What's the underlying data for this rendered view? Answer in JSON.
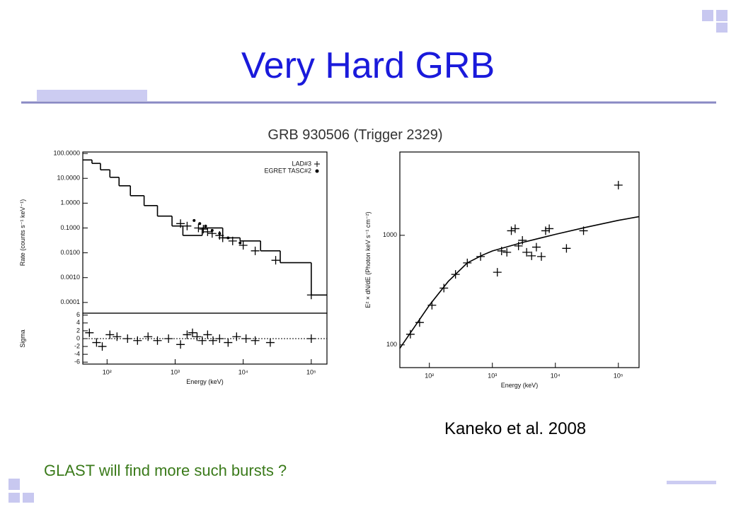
{
  "title": "Very Hard GRB",
  "figure_title": "GRB 930506 (Trigger 2329)",
  "citation": "Kaneko et al. 2008",
  "footer": "GLAST will find more such bursts ?",
  "chart_data": [
    {
      "type": "line",
      "ylabel": "Rate (counts s⁻¹ keV⁻¹)",
      "log_x": true,
      "log_y": true,
      "xlim": [
        44,
        170000
      ],
      "ylim": [
        3.7e-05,
        115
      ],
      "yticks": [
        {
          "value": 100,
          "label": "100.0000"
        },
        {
          "value": 10,
          "label": "10.0000"
        },
        {
          "value": 1,
          "label": "1.0000"
        },
        {
          "value": 0.1,
          "label": "0.1000"
        },
        {
          "value": 0.01,
          "label": "0.0100"
        },
        {
          "value": 0.001,
          "label": "0.0010"
        },
        {
          "value": 0.0001,
          "label": "0.0001"
        }
      ],
      "legend": "upper right",
      "series": [
        {
          "color": "#000000",
          "step": true,
          "x": [
            44,
            60,
            80,
            110,
            150,
            220,
            350,
            550,
            900,
            1300,
            2500,
            5000,
            9000,
            18000,
            35000,
            100000
          ],
          "values": [
            55,
            40,
            22,
            11,
            5,
            2,
            0.8,
            0.3,
            0.12,
            0.05,
            0.1,
            0.04,
            0.03,
            0.012,
            0.004,
            0.0002
          ]
        },
        {
          "name": "LAD#3",
          "color": "#000000",
          "marker": "plus",
          "x": [
            1200,
            1500,
            2200,
            2600,
            3000,
            3500,
            4500,
            5000,
            7000,
            10000,
            15000,
            30000,
            100000
          ],
          "values": [
            0.15,
            0.12,
            0.1,
            0.09,
            0.07,
            0.06,
            0.05,
            0.04,
            0.03,
            0.02,
            0.012,
            0.005,
            0.0002
          ]
        },
        {
          "name": "EGRET TASC#2",
          "color": "#000000",
          "marker": "dot",
          "x": [
            1900,
            2300,
            2800,
            3500,
            4500,
            6000,
            9000
          ],
          "values": [
            0.2,
            0.15,
            0.12,
            0.08,
            0.06,
            0.04,
            0.025
          ]
        }
      ]
    },
    {
      "type": "scatter",
      "ylabel": "Sigma",
      "xlabel": "Energy (keV)",
      "log_x": true,
      "xlim": [
        44,
        170000
      ],
      "ylim": [
        -6.5,
        6.5
      ],
      "xticks": [
        {
          "value": 100,
          "label": "10²"
        },
        {
          "value": 1000,
          "label": "10³"
        },
        {
          "value": 10000,
          "label": "10⁴"
        },
        {
          "value": 100000,
          "label": "10⁵"
        }
      ],
      "yticks": [
        6,
        4,
        2,
        0,
        -2,
        -4,
        -6
      ],
      "series": [
        {
          "color": "#000000",
          "marker": "plus",
          "x": [
            55,
            70,
            85,
            110,
            140,
            200,
            280,
            400,
            550,
            800,
            1200,
            1500,
            1800,
            2100,
            2500,
            3000,
            3600,
            4500,
            6000,
            8000,
            11000,
            15000,
            25000,
            100000
          ],
          "values": [
            1.5,
            -1,
            -2,
            1,
            0.5,
            0,
            -0.5,
            0.5,
            -0.5,
            0,
            -1.5,
            1,
            1.5,
            0.5,
            -0.5,
            1,
            -0.5,
            0,
            -1,
            0.5,
            0,
            -0.5,
            -1,
            0
          ]
        }
      ]
    },
    {
      "type": "line",
      "ylabel": "E² × dN/dE (Photon keV s⁻¹ cm⁻²)",
      "xlabel": "Energy (keV)",
      "log_x": true,
      "log_y": true,
      "xlim": [
        34,
        213000
      ],
      "ylim": [
        62,
        5760
      ],
      "xticks": [
        {
          "value": 100,
          "label": "10²"
        },
        {
          "value": 1000,
          "label": "10³"
        },
        {
          "value": 10000,
          "label": "10⁴"
        },
        {
          "value": 100000,
          "label": "10⁵"
        }
      ],
      "yticks": [
        100,
        1000
      ],
      "series": [
        {
          "color": "#000000",
          "x": [
            34,
            60,
            100,
            200,
            400,
            700,
            1000,
            3000,
            10000,
            30000,
            100000,
            213000
          ],
          "values": [
            93,
            150,
            230,
            380,
            560,
            660,
            720,
            860,
            1020,
            1180,
            1370,
            1480
          ]
        },
        {
          "color": "#000000",
          "marker": "plus",
          "x": [
            50,
            70,
            110,
            170,
            260,
            400,
            650,
            1200,
            1400,
            1700,
            2000,
            2300,
            2600,
            3000,
            3500,
            4200,
            5000,
            6000,
            7000,
            8000,
            15000,
            28000,
            100000
          ],
          "values": [
            125,
            160,
            230,
            330,
            440,
            560,
            640,
            460,
            720,
            700,
            1100,
            1150,
            800,
            900,
            700,
            650,
            780,
            640,
            1100,
            1150,
            760,
            1100,
            2870
          ]
        }
      ]
    }
  ]
}
